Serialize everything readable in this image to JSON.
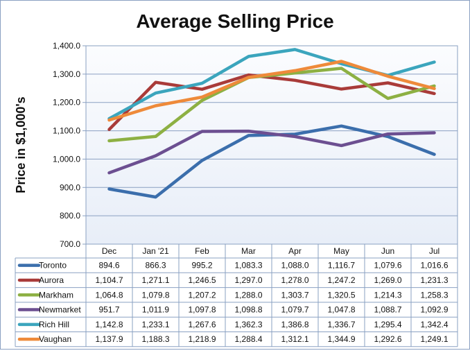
{
  "chart_data": {
    "type": "line",
    "title": "Average Selling Price",
    "ylabel": "Price in $1,000's",
    "xlabel": "",
    "categories": [
      "Dec",
      "Jan '21",
      "Feb",
      "Mar",
      "Apr",
      "May",
      "Jun",
      "Jul"
    ],
    "ylim": [
      700,
      1400
    ],
    "ystep": 100,
    "ytick_labels": [
      "700.0",
      "800.0",
      "900.0",
      "1,000.0",
      "1,100.0",
      "1,200.0",
      "1,300.0",
      "1,400.0"
    ],
    "grid": true,
    "legend": "data-table-below",
    "series": [
      {
        "name": "Toronto",
        "color": "#3b6eac",
        "values": [
          894.6,
          866.3,
          995.2,
          1083.3,
          1088.0,
          1116.7,
          1079.6,
          1016.6
        ],
        "labels": [
          "894.6",
          "866.3",
          "995.2",
          "1,083.3",
          "1,088.0",
          "1,116.7",
          "1,079.6",
          "1,016.6"
        ]
      },
      {
        "name": "Aurora",
        "color": "#a93b39",
        "values": [
          1104.7,
          1271.1,
          1246.5,
          1297.0,
          1278.0,
          1247.2,
          1269.0,
          1231.3
        ],
        "labels": [
          "1,104.7",
          "1,271.1",
          "1,246.5",
          "1,297.0",
          "1,278.0",
          "1,247.2",
          "1,269.0",
          "1,231.3"
        ]
      },
      {
        "name": "Markham",
        "color": "#8db043",
        "values": [
          1064.8,
          1079.8,
          1207.2,
          1288.0,
          1303.7,
          1320.5,
          1214.3,
          1258.3
        ],
        "labels": [
          "1,064.8",
          "1,079.8",
          "1,207.2",
          "1,288.0",
          "1,303.7",
          "1,320.5",
          "1,214.3",
          "1,258.3"
        ]
      },
      {
        "name": "Newmarket",
        "color": "#6c4f91",
        "values": [
          951.7,
          1011.9,
          1097.8,
          1098.8,
          1079.7,
          1047.8,
          1088.7,
          1092.9
        ],
        "labels": [
          "951.7",
          "1,011.9",
          "1,097.8",
          "1,098.8",
          "1,079.7",
          "1,047.8",
          "1,088.7",
          "1,092.9"
        ]
      },
      {
        "name": "Rich Hill",
        "color": "#3ba5bd",
        "values": [
          1142.8,
          1233.1,
          1267.6,
          1362.3,
          1386.8,
          1336.7,
          1295.4,
          1342.4
        ],
        "labels": [
          "1,142.8",
          "1,233.1",
          "1,267.6",
          "1,362.3",
          "1,386.8",
          "1,336.7",
          "1,295.4",
          "1,342.4"
        ]
      },
      {
        "name": "Vaughan",
        "color": "#ee8a3a",
        "values": [
          1137.9,
          1188.3,
          1218.9,
          1288.4,
          1312.1,
          1344.9,
          1292.6,
          1249.1
        ],
        "labels": [
          "1,137.9",
          "1,188.3",
          "1,218.9",
          "1,288.4",
          "1,312.1",
          "1,344.9",
          "1,292.6",
          "1,249.1"
        ]
      }
    ]
  }
}
